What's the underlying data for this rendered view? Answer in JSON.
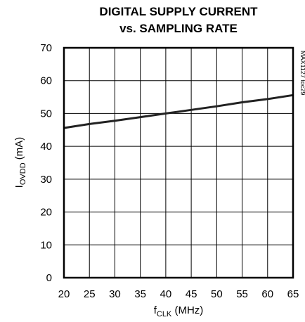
{
  "chart_data": {
    "type": "line",
    "title_line1": "DIGITAL SUPPLY CURRENT",
    "title_line2": "vs. SAMPLING RATE",
    "xlabel_main": "f",
    "xlabel_sub": "CLK",
    "xlabel_unit": " (MHz)",
    "ylabel_main": "I",
    "ylabel_sub": "OVDD",
    "ylabel_unit": " (mA)",
    "side_note": "MAX1127 toc29",
    "xlim": [
      20,
      65
    ],
    "ylim": [
      0,
      70
    ],
    "xticks": [
      "20",
      "25",
      "30",
      "35",
      "40",
      "45",
      "50",
      "55",
      "60",
      "65"
    ],
    "yticks": [
      "0",
      "10",
      "20",
      "30",
      "40",
      "50",
      "60",
      "70"
    ],
    "grid": true,
    "series": [
      {
        "x": [
          20,
          25,
          30,
          35,
          40,
          45,
          50,
          55,
          60,
          65
        ],
        "y": [
          45.6,
          46.8,
          47.8,
          48.9,
          50.0,
          51.1,
          52.2,
          53.4,
          54.4,
          55.6
        ]
      }
    ]
  }
}
